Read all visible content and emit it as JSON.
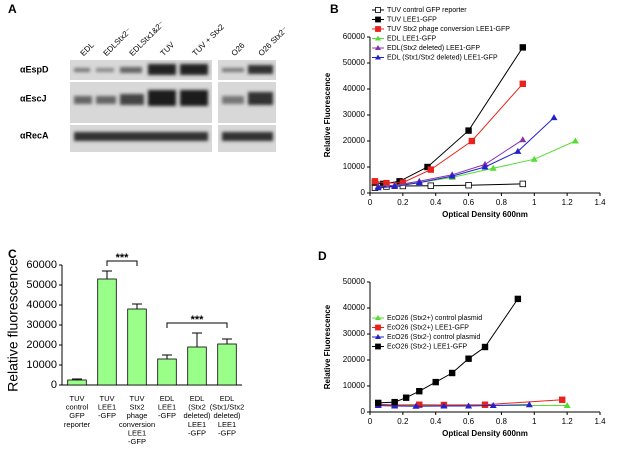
{
  "blot": {
    "panel": "A",
    "lanes": [
      "EDL",
      "EDLStx2⁻",
      "EDLStx1&2⁻",
      "TUV",
      "TUV + Stx2",
      "O26",
      "O26 Stx2⁻"
    ],
    "rows": [
      "αEspD",
      "αEscJ",
      "αRecA"
    ]
  },
  "chart_data": [
    {
      "type": "line",
      "panel": "B",
      "x_label": "Optical Density 600nm",
      "y_label": "Relative Fluorescence",
      "xlim": [
        0,
        1.4
      ],
      "xticks": [
        0,
        0.2,
        0.4,
        0.6,
        0.8,
        1,
        1.2,
        1.4
      ],
      "ylim": [
        0,
        60000
      ],
      "yticks": [
        0,
        10000,
        20000,
        30000,
        40000,
        50000,
        60000
      ],
      "legend": "upper left",
      "series": [
        {
          "name": "TUV control GFP reporter",
          "color": "#000000",
          "marker": "open-square",
          "x": [
            0.03,
            0.1,
            0.2,
            0.37,
            0.6,
            0.93
          ],
          "values": [
            2000,
            2500,
            2700,
            2800,
            3000,
            3500
          ]
        },
        {
          "name": "TUV LEE1-GFP",
          "color": "#000000",
          "marker": "square",
          "x": [
            0.03,
            0.08,
            0.18,
            0.35,
            0.6,
            0.93
          ],
          "values": [
            4000,
            3500,
            4500,
            10000,
            24000,
            56000
          ]
        },
        {
          "name": "TUV Stx2 phage conversion LEE1-GFP",
          "color": "#e8221c",
          "marker": "square",
          "x": [
            0.03,
            0.1,
            0.2,
            0.37,
            0.62,
            0.93
          ],
          "values": [
            4500,
            3800,
            4000,
            9000,
            20000,
            42000
          ]
        },
        {
          "name": "EDL LEE1-GFP",
          "color": "#55dd33",
          "marker": "triangle",
          "x": [
            0.05,
            0.15,
            0.3,
            0.5,
            0.75,
            1.0,
            1.25
          ],
          "values": [
            2500,
            3000,
            4000,
            6000,
            9500,
            13000,
            20000
          ]
        },
        {
          "name": "EDL(Stx2 deleted) LEE1-GFP",
          "color": "#8833aa",
          "marker": "triangle",
          "x": [
            0.05,
            0.15,
            0.3,
            0.5,
            0.7,
            0.93
          ],
          "values": [
            2500,
            3000,
            4500,
            7000,
            11000,
            20500
          ]
        },
        {
          "name": "EDL (Stx1/Stx2 deleted) LEE1-GFP",
          "color": "#2222cc",
          "marker": "triangle",
          "x": [
            0.05,
            0.15,
            0.3,
            0.5,
            0.7,
            0.9,
            1.12
          ],
          "values": [
            2000,
            2500,
            4000,
            6500,
            10000,
            16000,
            29000
          ]
        }
      ]
    },
    {
      "type": "bar",
      "panel": "C",
      "y_label": "Relative fluorescence",
      "color": "#99ff88",
      "categories": [
        [
          "TUV",
          "control",
          "GFP",
          "reporter"
        ],
        [
          "TUV",
          "LEE1",
          "-GFP"
        ],
        [
          "TUV",
          "Stx2",
          "phage",
          "conversion",
          "LEE1",
          "-GFP"
        ],
        [
          "EDL",
          "LEE1",
          "-GFP"
        ],
        [
          "EDL",
          "(Stx2",
          "deleted)",
          "LEE1",
          "-GFP"
        ],
        [
          "EDL",
          "(Stx1/Stx2",
          "deleted)",
          "LEE1",
          "-GFP"
        ]
      ],
      "values": [
        2500,
        53000,
        38000,
        13000,
        19000,
        20500
      ],
      "errors": [
        500,
        4000,
        2500,
        2000,
        7000,
        2500
      ],
      "ylim": [
        0,
        60000
      ],
      "yticks": [
        0,
        10000,
        20000,
        30000,
        40000,
        50000,
        60000
      ],
      "annotations": [
        {
          "text": "***",
          "from": 1,
          "to": 2
        },
        {
          "text": "***",
          "from": 3,
          "to": 5
        }
      ]
    },
    {
      "type": "line",
      "panel": "D",
      "x_label": "Optical Density 600nm",
      "y_label": "Relative Fluorescence",
      "xlim": [
        0,
        1.4
      ],
      "xticks": [
        0,
        0.2,
        0.4,
        0.6,
        0.8,
        1,
        1.2,
        1.4
      ],
      "ylim": [
        0,
        50000
      ],
      "yticks": [
        0,
        10000,
        20000,
        30000,
        40000,
        50000
      ],
      "legend": "upper left",
      "series": [
        {
          "name": "EcO26 (Stx2+) control plasmid",
          "color": "#55dd33",
          "marker": "triangle",
          "x": [
            0.05,
            0.15,
            0.3,
            0.45,
            0.7,
            1.2
          ],
          "values": [
            2500,
            2500,
            2500,
            2500,
            2500,
            2500
          ]
        },
        {
          "name": "EcO26 (Stx2+) LEE1-GFP",
          "color": "#e8221c",
          "marker": "square",
          "x": [
            0.05,
            0.15,
            0.3,
            0.45,
            0.7,
            1.17
          ],
          "values": [
            3000,
            2700,
            2800,
            2700,
            2800,
            4700
          ]
        },
        {
          "name": "EcO26 (Stx2-) control plasmid",
          "color": "#2222cc",
          "marker": "triangle",
          "x": [
            0.05,
            0.15,
            0.28,
            0.45,
            0.6,
            0.75,
            0.97
          ],
          "values": [
            2500,
            2300,
            2200,
            2300,
            2300,
            2500,
            2800
          ]
        },
        {
          "name": "EcO26 (Stx2-) LEE1-GFP",
          "color": "#000000",
          "marker": "square",
          "x": [
            0.05,
            0.15,
            0.22,
            0.3,
            0.4,
            0.5,
            0.6,
            0.7,
            0.9
          ],
          "values": [
            3500,
            3800,
            5500,
            8000,
            11500,
            15000,
            20500,
            25000,
            43500
          ]
        }
      ]
    }
  ]
}
